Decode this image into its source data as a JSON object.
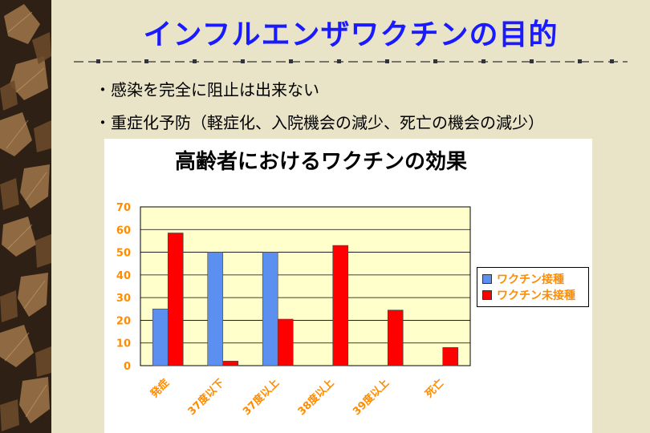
{
  "slide": {
    "title": "インフルエンザワクチンの目的",
    "bullets": [
      "・感染を完全に阻止は出来ない",
      "・重症化予防（軽症化、入院機会の減少、死亡の機会の減少）"
    ]
  },
  "colors": {
    "title": "#1a1aff",
    "label_orange": "#ff8c00",
    "series_vaccinated": "#5b8ff0",
    "series_unvaccinated": "#ff0000",
    "plot_background": "#ffffcc"
  },
  "chart_data": {
    "type": "bar",
    "title": "高齢者におけるワクチンの効果",
    "categories": [
      "発症",
      "37度以下",
      "37度以上",
      "38度以上",
      "39度以上",
      "死亡"
    ],
    "series": [
      {
        "name": "ワクチン接種",
        "values": [
          25,
          50,
          50,
          0,
          0,
          0
        ]
      },
      {
        "name": "ワクチン未接種",
        "values": [
          58.5,
          2,
          20.5,
          53,
          24.5,
          8
        ]
      }
    ],
    "ylim": [
      0,
      70
    ],
    "yticks": [
      0,
      10,
      20,
      30,
      40,
      50,
      60,
      70
    ],
    "grid": true,
    "legend": "right"
  }
}
